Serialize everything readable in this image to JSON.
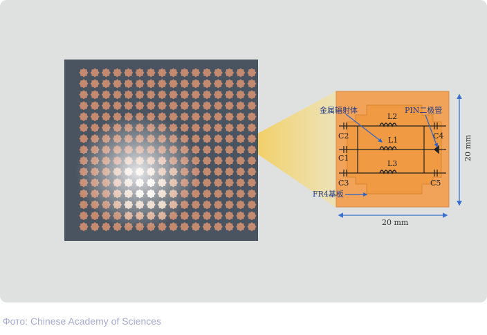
{
  "figure": {
    "label_metal_radiator": "金属辐射体",
    "label_pin_diode": "PIN二极管",
    "label_fr4_substrate": "FR4基板",
    "label_width": "20 mm",
    "label_height": "20 mm",
    "inductor_labels": [
      "L2",
      "L1",
      "L3"
    ],
    "capacitor_labels": [
      "C2",
      "C1",
      "C3",
      "C4",
      "C5"
    ],
    "colors": {
      "background": "#dfe1e1",
      "array_board": "#4a5460",
      "patch": "#c48a70",
      "highlight_beam": "#f2d66a",
      "unit_cell": "#f3a45c",
      "dimension_arrow": "#3a6fd0"
    }
  },
  "caption": "Фото: Chinese Academy of Sciences"
}
